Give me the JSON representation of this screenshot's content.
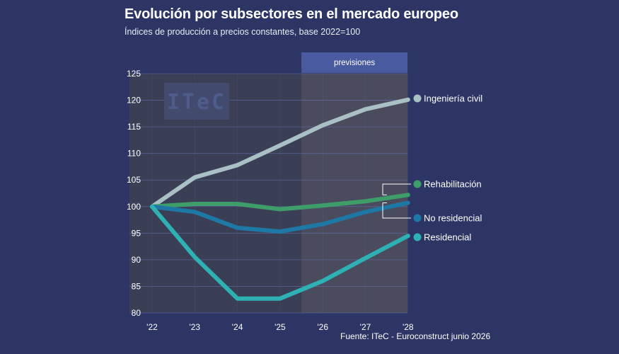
{
  "header": {
    "title": "Evolución por subsectores en el mercado europeo",
    "subtitle": "Índices de producción a precios constantes, base 2022=100"
  },
  "source": "Fuente: ITeC - Euroconstruct junio 2026",
  "watermark": "ITeC",
  "forecast_label": "previsiones",
  "colors": {
    "background": "#2c3564",
    "plot_area": "#3b3f55",
    "forecast_area": "#4a4c5e",
    "forecast_band": "#4a5a9e"
  },
  "chart_data": {
    "type": "line",
    "title": "Evolución por subsectores en el mercado europeo",
    "subtitle": "Índices de producción a precios constantes, base 2022=100",
    "categories": [
      "'22",
      "'23",
      "'24",
      "'25",
      "'26",
      "'27",
      "'28"
    ],
    "ylim": [
      80,
      125
    ],
    "yticks": [
      80,
      85,
      90,
      95,
      100,
      105,
      110,
      115,
      120,
      125
    ],
    "grid": true,
    "forecast_from": "'25",
    "series": [
      {
        "name": "Ingeniería civil",
        "color": "#a9c0c4",
        "values": [
          100,
          105.5,
          107.8,
          111.5,
          115.3,
          118.3,
          120.1
        ]
      },
      {
        "name": "Rehabilitación",
        "color": "#3e9e6a",
        "values": [
          100,
          100.5,
          100.5,
          99.5,
          100.2,
          101,
          102.2
        ]
      },
      {
        "name": "No residencial",
        "color": "#1d78a5",
        "values": [
          100,
          99,
          96,
          95.3,
          96.7,
          99,
          100.7
        ]
      },
      {
        "name": "Residencial",
        "color": "#2eb1b5",
        "values": [
          100,
          90.5,
          82.7,
          82.7,
          86,
          90.3,
          94.5
        ]
      }
    ]
  }
}
